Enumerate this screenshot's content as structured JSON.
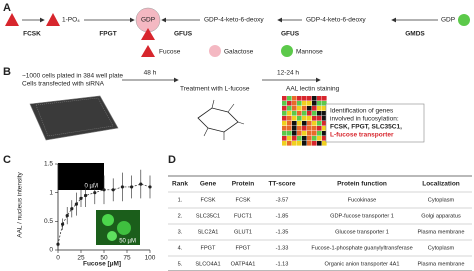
{
  "panel_labels": [
    "A",
    "B",
    "C",
    "D"
  ],
  "panel_a": {
    "nodes": [
      "1-PO₄",
      "GDP",
      "GDP-4-keto-6-deoxy",
      "GDP-4-keto-6-deoxy",
      "GDP"
    ],
    "enzymes": [
      "FCSK",
      "FPGT",
      "GFUS",
      "GFUS",
      "GMDS"
    ],
    "legend": [
      "Fucose",
      "Galactose",
      "Mannose"
    ]
  },
  "panel_b": {
    "step1": [
      "~1000 cells plated in 384 well plate",
      "Cells transfected with siRNA"
    ],
    "time1": "48 h",
    "step2": "Treatment with L-fucose",
    "time2": "12-24 h",
    "step3": "AAL lectin staining",
    "result": [
      "Identification of genes",
      "involved in fucosylation:",
      "FCSK, FPGT, SLC35C1,",
      "L-fucose transporter"
    ]
  },
  "chart_data": {
    "type": "scatter",
    "xlabel": "Fucose [µM]",
    "ylabel": "AAL / nucleus intensity",
    "x": [
      0,
      5,
      10,
      15,
      20,
      25,
      30,
      40,
      50,
      60,
      70,
      80,
      90,
      100
    ],
    "values": [
      0.1,
      0.45,
      0.6,
      0.72,
      0.8,
      0.9,
      0.95,
      1.0,
      1.05,
      1.05,
      1.1,
      1.1,
      1.15,
      1.1
    ],
    "errors": [
      0.05,
      0.1,
      0.15,
      0.15,
      0.2,
      0.15,
      0.2,
      0.2,
      0.25,
      0.2,
      0.25,
      0.2,
      0.25,
      0.2
    ],
    "color": "#222222",
    "xlim": [
      0,
      100
    ],
    "ylim": [
      0,
      1.5
    ],
    "xticks": [
      0,
      25,
      50,
      75,
      100
    ],
    "yticks": [
      0,
      0.5,
      1,
      1.5
    ],
    "insets": [
      "0 µM",
      "50 µM"
    ]
  },
  "table": {
    "header": [
      "Rank",
      "Gene",
      "Protein",
      "TT-score",
      "Protein function",
      "Localization"
    ],
    "rows": [
      [
        "1.",
        "FCSK",
        "FCSK",
        "-3.57",
        "Fucokinase",
        "Cytoplasm"
      ],
      [
        "2.",
        "SLC35C1",
        "FUCT1",
        "-1.85",
        "GDP-fucose transporter 1",
        "Golgi apparatus"
      ],
      [
        "3.",
        "SLC2A1",
        "GLUT1",
        "-1.35",
        "Glucose transporter 1",
        "Plasma membrane"
      ],
      [
        "4.",
        "FPGT",
        "FPGT",
        "-1.33",
        "Fucose-1-phosphate guanylyltransferase",
        "Cytoplasm"
      ],
      [
        "5.",
        "SLCO4A1",
        "OATP4A1",
        "-1.13",
        "Organic anion transporter 4A1",
        "Plasma membrane"
      ]
    ]
  }
}
